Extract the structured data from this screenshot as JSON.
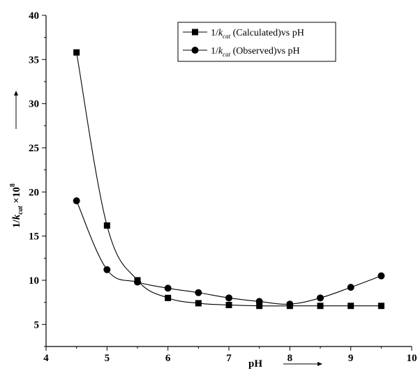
{
  "chart_data": {
    "type": "scatter",
    "xlabel": "pH",
    "ylabel_prefix": "1/",
    "ylabel_k": "k",
    "ylabel_sub": "cat",
    "ylabel_times": " ×10",
    "ylabel_sup": "8",
    "xlim": [
      4,
      10
    ],
    "ylim": [
      2.5,
      40
    ],
    "xticks": [
      "4",
      "5",
      "6",
      "7",
      "8",
      "9",
      "10"
    ],
    "yticks": [
      "5",
      "10",
      "15",
      "20",
      "25",
      "30",
      "35",
      "40"
    ],
    "grid": false,
    "legend_position": "top-right",
    "x": [
      4.5,
      5.0,
      5.5,
      6.0,
      6.5,
      7.0,
      7.5,
      8.0,
      8.5,
      9.0,
      9.5
    ],
    "series": [
      {
        "name_prefix": "1/",
        "name_k": "k",
        "name_sub": "cat",
        "name_rest": " (Calculated)vs pH",
        "marker": "square",
        "values": [
          35.8,
          16.2,
          10.0,
          8.0,
          7.4,
          7.2,
          7.1,
          7.1,
          7.1,
          7.1,
          7.1
        ]
      },
      {
        "name_prefix": "1/",
        "name_k": "k",
        "name_sub": "cat",
        "name_rest": " (Observed)vs pH",
        "marker": "circle",
        "values": [
          19.0,
          11.2,
          9.8,
          9.1,
          8.6,
          8.0,
          7.6,
          7.3,
          8.0,
          9.2,
          10.5
        ]
      }
    ]
  }
}
